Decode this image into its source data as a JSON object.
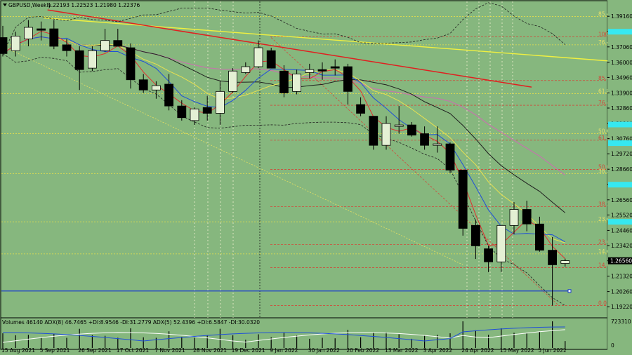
{
  "header": {
    "symbol": "GBPUSD,Weekly",
    "ohlc": "1.22193 1.22523 1.21980 1.22376"
  },
  "colors": {
    "background": "#86b77e",
    "bull": "#e4f0d4",
    "bear": "#000000",
    "fib_red": "#d04a3a",
    "fib_yellow": "#e6e04a",
    "trend_red": "#e02020",
    "trend_yellow": "#f0f040",
    "ma_blue": "#1f4fd8",
    "ma_red": "#e03030",
    "ma_yellow": "#e8e050",
    "ma_black": "#202020",
    "ma_pink": "#c07aa8",
    "support_blue": "#1a3ccf",
    "cyan_tag": "#36e8f0"
  },
  "chart_data": {
    "type": "candlestick",
    "timeframe": "Weekly",
    "ylim": [
      1.187,
      1.397
    ],
    "price_ticks": [
      "1.39160",
      "1.38100",
      "1.37060",
      "1.36000",
      "1.34960",
      "1.33900",
      "1.32860",
      "1.31800",
      "1.30760",
      "1.29720",
      "1.28660",
      "1.27620",
      "1.26560",
      "1.25520",
      "1.24460",
      "1.23420",
      "1.22376",
      "1.21320",
      "1.20260",
      "1.19220"
    ],
    "date_labels": [
      "15 Aug 2021",
      "5 Sep 2021",
      "26 Sep 2021",
      "17 Oct 2021",
      "7 Nov 2021",
      "28 Nov 2021",
      "19 Dec 2021",
      "9 Jan 2022",
      "30 Jan 2022",
      "20 Feb 2022",
      "13 Mar 2022",
      "3 Apr 2022",
      "24 Apr 2022",
      "15 May 2022",
      "5 Jun 2022"
    ],
    "candles": [
      {
        "o": 1.377,
        "h": 1.385,
        "l": 1.364,
        "c": 1.366
      },
      {
        "o": 1.368,
        "h": 1.381,
        "l": 1.364,
        "c": 1.378
      },
      {
        "o": 1.376,
        "h": 1.389,
        "l": 1.371,
        "c": 1.384
      },
      {
        "o": 1.383,
        "h": 1.388,
        "l": 1.375,
        "c": 1.382
      },
      {
        "o": 1.383,
        "h": 1.389,
        "l": 1.369,
        "c": 1.371
      },
      {
        "o": 1.372,
        "h": 1.376,
        "l": 1.364,
        "c": 1.368
      },
      {
        "o": 1.368,
        "h": 1.371,
        "l": 1.341,
        "c": 1.355
      },
      {
        "o": 1.356,
        "h": 1.371,
        "l": 1.354,
        "c": 1.368
      },
      {
        "o": 1.368,
        "h": 1.383,
        "l": 1.367,
        "c": 1.375
      },
      {
        "o": 1.375,
        "h": 1.383,
        "l": 1.371,
        "c": 1.371
      },
      {
        "o": 1.37,
        "h": 1.373,
        "l": 1.342,
        "c": 1.348
      },
      {
        "o": 1.348,
        "h": 1.352,
        "l": 1.339,
        "c": 1.341
      },
      {
        "o": 1.341,
        "h": 1.347,
        "l": 1.335,
        "c": 1.344
      },
      {
        "o": 1.345,
        "h": 1.352,
        "l": 1.327,
        "c": 1.33
      },
      {
        "o": 1.33,
        "h": 1.334,
        "l": 1.32,
        "c": 1.322
      },
      {
        "o": 1.32,
        "h": 1.329,
        "l": 1.317,
        "c": 1.328
      },
      {
        "o": 1.329,
        "h": 1.337,
        "l": 1.32,
        "c": 1.325
      },
      {
        "o": 1.325,
        "h": 1.347,
        "l": 1.317,
        "c": 1.34
      },
      {
        "o": 1.34,
        "h": 1.356,
        "l": 1.339,
        "c": 1.354
      },
      {
        "o": 1.353,
        "h": 1.36,
        "l": 1.352,
        "c": 1.357
      },
      {
        "o": 1.357,
        "h": 1.375,
        "l": 1.356,
        "c": 1.37
      },
      {
        "o": 1.368,
        "h": 1.37,
        "l": 1.357,
        "c": 1.356
      },
      {
        "o": 1.354,
        "h": 1.358,
        "l": 1.336,
        "c": 1.339
      },
      {
        "o": 1.34,
        "h": 1.355,
        "l": 1.338,
        "c": 1.352
      },
      {
        "o": 1.353,
        "h": 1.359,
        "l": 1.349,
        "c": 1.355
      },
      {
        "o": 1.355,
        "h": 1.36,
        "l": 1.348,
        "c": 1.354
      },
      {
        "o": 1.357,
        "h": 1.362,
        "l": 1.351,
        "c": 1.356
      },
      {
        "o": 1.357,
        "h": 1.359,
        "l": 1.331,
        "c": 1.34
      },
      {
        "o": 1.331,
        "h": 1.336,
        "l": 1.323,
        "c": 1.325
      },
      {
        "o": 1.323,
        "h": 1.323,
        "l": 1.3,
        "c": 1.303
      },
      {
        "o": 1.303,
        "h": 1.323,
        "l": 1.3,
        "c": 1.318
      },
      {
        "o": 1.316,
        "h": 1.33,
        "l": 1.311,
        "c": 1.317
      },
      {
        "o": 1.317,
        "h": 1.319,
        "l": 1.309,
        "c": 1.31
      },
      {
        "o": 1.311,
        "h": 1.316,
        "l": 1.3,
        "c": 1.303
      },
      {
        "o": 1.303,
        "h": 1.316,
        "l": 1.298,
        "c": 1.304
      },
      {
        "o": 1.304,
        "h": 1.305,
        "l": 1.284,
        "c": 1.286
      },
      {
        "o": 1.286,
        "h": 1.286,
        "l": 1.241,
        "c": 1.246
      },
      {
        "o": 1.248,
        "h": 1.252,
        "l": 1.225,
        "c": 1.234
      },
      {
        "o": 1.232,
        "h": 1.234,
        "l": 1.216,
        "c": 1.223
      },
      {
        "o": 1.223,
        "h": 1.247,
        "l": 1.216,
        "c": 1.248
      },
      {
        "o": 1.248,
        "h": 1.264,
        "l": 1.242,
        "c": 1.259
      },
      {
        "o": 1.259,
        "h": 1.265,
        "l": 1.244,
        "c": 1.249
      },
      {
        "o": 1.249,
        "h": 1.254,
        "l": 1.23,
        "c": 1.231
      },
      {
        "o": 1.231,
        "h": 1.24,
        "l": 1.193,
        "c": 1.221
      },
      {
        "o": 1.2219,
        "h": 1.2252,
        "l": 1.2198,
        "c": 1.2238
      }
    ],
    "fib_levels_red": [
      {
        "label": "100.0",
        "price": 1.3775
      },
      {
        "label": "85.4",
        "price": 1.3475
      },
      {
        "label": "76.4",
        "price": 1.3305
      },
      {
        "label": "61.8",
        "price": 1.3065
      },
      {
        "label": "50.0",
        "price": 1.2865
      },
      {
        "label": "38.2",
        "price": 1.261
      },
      {
        "label": "23.6",
        "price": 1.235
      },
      {
        "label": "14.6",
        "price": 1.219
      },
      {
        "label": "0.0",
        "price": 1.193
      }
    ],
    "fib_levels_yellow": [
      {
        "label": "85.4",
        "price": 1.3915
      },
      {
        "label": "76.4",
        "price": 1.372
      },
      {
        "label": "61.8",
        "price": 1.3385
      },
      {
        "label": "50.0",
        "price": 1.311
      },
      {
        "label": "38.2",
        "price": 1.2835
      },
      {
        "label": "23.6",
        "price": 1.2505
      },
      {
        "label": "14.6",
        "price": 1.2285
      }
    ],
    "support_line_price": 1.203,
    "cyan_tag_prices": [
      1.381,
      1.3173,
      1.3045,
      1.276,
      1.2505
    ],
    "volume_panel": {
      "label": "Volumes 46140  ADX(8) 46.7465 +DI:8.9546 -DI:31.2779  ADX(5) 52.4396 +DI:6.5847 -DI:30.0320",
      "ticks": [
        "723310",
        "0"
      ]
    }
  }
}
